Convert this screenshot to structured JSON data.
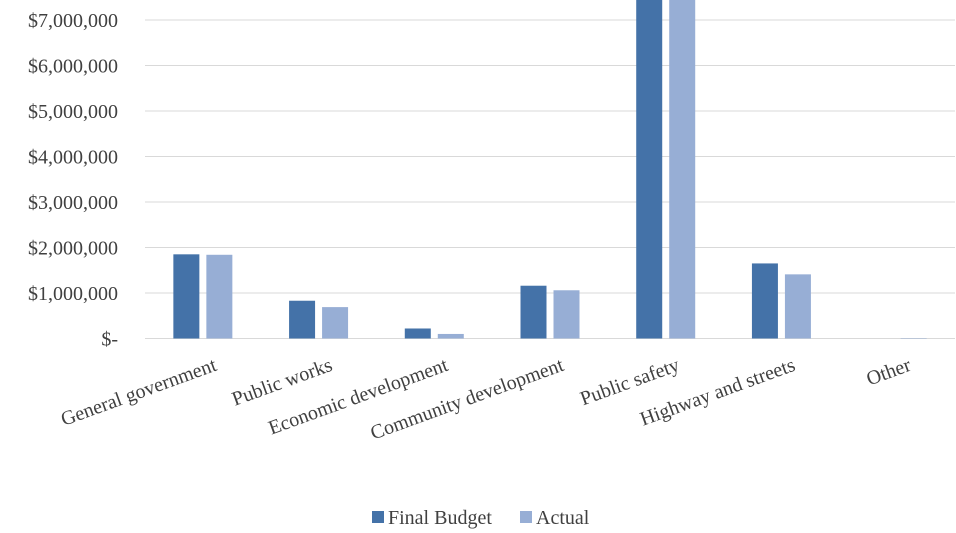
{
  "chart_data": {
    "type": "bar",
    "title": "",
    "xlabel": "",
    "ylabel": "",
    "categories": [
      "General government",
      "Public works",
      "Economic development",
      "Community development",
      "Public safety",
      "Highway and streets",
      "Other"
    ],
    "series": [
      {
        "name": "Final Budget",
        "color": "#4472a8",
        "values": [
          1850000,
          830000,
          220000,
          1160000,
          7900000,
          1650000,
          0
        ]
      },
      {
        "name": "Actual",
        "color": "#97aed5",
        "values": [
          1840000,
          690000,
          100000,
          1060000,
          7900000,
          1410000,
          10000
        ]
      }
    ],
    "ylim": [
      0,
      7400000
    ],
    "y_ticks": [
      {
        "value": 0,
        "label": "$-"
      },
      {
        "value": 1000000,
        "label": "$1,000,000"
      },
      {
        "value": 2000000,
        "label": "$2,000,000"
      },
      {
        "value": 3000000,
        "label": "$3,000,000"
      },
      {
        "value": 4000000,
        "label": "$4,000,000"
      },
      {
        "value": 5000000,
        "label": "$5,000,000"
      },
      {
        "value": 6000000,
        "label": "$6,000,000"
      },
      {
        "value": 7000000,
        "label": "$7,000,000"
      }
    ],
    "grid": true,
    "legend_position": "bottom"
  }
}
